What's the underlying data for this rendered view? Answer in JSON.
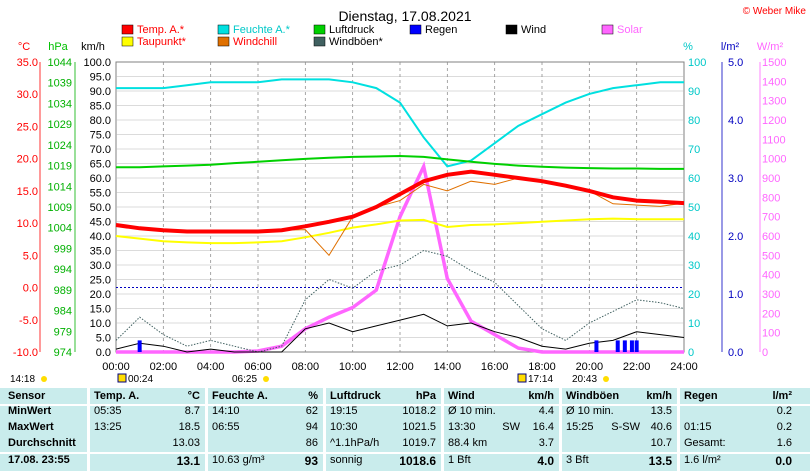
{
  "chart_data": {
    "type": "line",
    "title": "Dienstag, 17.08.2021",
    "copyright": "© Weber Mike",
    "x_tick_labels": [
      "00:00",
      "02:00",
      "04:00",
      "06:00",
      "08:00",
      "10:00",
      "12:00",
      "14:00",
      "16:00",
      "18:00",
      "20:00",
      "22:00",
      "24:00"
    ],
    "axes": {
      "temp": {
        "unit": "°C",
        "ticks": [
          "35.0",
          "30.0",
          "25.0",
          "20.0",
          "15.0",
          "10.0",
          "5.0",
          "0.0",
          "-5.0",
          "-10.0"
        ],
        "color": "#ff0000",
        "range": [
          -10,
          35
        ]
      },
      "pressure": {
        "unit": "hPa",
        "ticks": [
          "1044",
          "1039",
          "1034",
          "1029",
          "1024",
          "1019",
          "1014",
          "1009",
          "1004",
          "999",
          "994",
          "989",
          "984",
          "979",
          "974"
        ],
        "color": "#00c000",
        "range": [
          974,
          1044
        ]
      },
      "wind": {
        "unit": "km/h",
        "ticks": [
          "100.0",
          "95.0",
          "90.0",
          "85.0",
          "80.0",
          "75.0",
          "70.0",
          "65.0",
          "60.0",
          "55.0",
          "50.0",
          "45.0",
          "40.0",
          "35.0",
          "30.0",
          "25.0",
          "20.0",
          "15.0",
          "10.0",
          "5.0",
          "0.0"
        ],
        "color": "#000000",
        "range": [
          0,
          100
        ]
      },
      "humidity": {
        "unit": "%",
        "ticks": [
          "100",
          "90",
          "80",
          "70",
          "60",
          "50",
          "40",
          "30",
          "20",
          "10",
          "0"
        ],
        "color": "#00e0e0",
        "range": [
          0,
          100
        ]
      },
      "rain": {
        "unit": "l/m²",
        "ticks": [
          "5.0",
          "4.0",
          "3.0",
          "2.0",
          "1.0",
          "0.0"
        ],
        "color": "#0000c0",
        "range": [
          0,
          5
        ]
      },
      "solar": {
        "unit": "W/m²",
        "ticks": [
          "1500",
          "1400",
          "1300",
          "1200",
          "1100",
          "1000",
          "900",
          "800",
          "700",
          "600",
          "500",
          "400",
          "300",
          "200",
          "100",
          "0"
        ],
        "color": "#ff00ff",
        "range": [
          0,
          1500
        ]
      }
    },
    "legend": [
      {
        "name": "Temp. A.*",
        "color": "#ff0000"
      },
      {
        "name": "Feuchte A.*",
        "color": "#00e0e0"
      },
      {
        "name": "Luftdruck",
        "color": "#00d000"
      },
      {
        "name": "Regen",
        "color": "#0000ff"
      },
      {
        "name": "Wind",
        "color": "#000000"
      },
      {
        "name": "Solar",
        "color": "#ff66ff"
      },
      {
        "name": "Taupunkt*",
        "color": "#ffff00"
      },
      {
        "name": "Windchill",
        "color": "#e07000"
      },
      {
        "name": "Windböen*",
        "color": "#406060"
      }
    ],
    "hours": [
      0,
      1,
      2,
      3,
      4,
      5,
      6,
      7,
      8,
      9,
      10,
      11,
      12,
      13,
      14,
      15,
      16,
      17,
      18,
      19,
      20,
      21,
      22,
      23,
      24
    ],
    "series": [
      {
        "name": "Temp. A.*",
        "axis": "temp",
        "color": "#ff0000",
        "values": [
          9.7,
          9.2,
          8.9,
          8.7,
          8.7,
          8.7,
          8.7,
          8.9,
          9.5,
          10.2,
          11.0,
          12.5,
          14.5,
          16.5,
          17.5,
          18.0,
          17.5,
          17.0,
          16.5,
          15.8,
          15.0,
          14.0,
          13.5,
          13.3,
          13.1
        ]
      },
      {
        "name": "Taupunkt*",
        "axis": "temp",
        "color": "#ffff00",
        "values": [
          8.0,
          7.6,
          7.2,
          7.0,
          6.9,
          6.9,
          7.0,
          7.2,
          7.8,
          8.5,
          9.3,
          9.8,
          10.4,
          10.5,
          9.4,
          9.7,
          9.8,
          10.0,
          10.2,
          10.4,
          10.6,
          10.7,
          10.6,
          10.6,
          10.6
        ]
      },
      {
        "name": "Feuchte A.*",
        "axis": "humidity",
        "color": "#00e0e0",
        "values": [
          91,
          91,
          91,
          92,
          93,
          93,
          93,
          94,
          94,
          94,
          93,
          91,
          86,
          74,
          64,
          66,
          72,
          78,
          82,
          86,
          89,
          91,
          92,
          93,
          93
        ]
      },
      {
        "name": "Luftdruck",
        "axis": "pressure",
        "color": "#00d000",
        "values": [
          1018.6,
          1018.6,
          1018.8,
          1019.0,
          1019.2,
          1019.6,
          1019.9,
          1020.3,
          1020.6,
          1020.9,
          1021.1,
          1021.2,
          1021.3,
          1021.1,
          1020.5,
          1019.9,
          1019.4,
          1019.0,
          1018.7,
          1018.5,
          1018.4,
          1018.3,
          1018.3,
          1018.2,
          1018.2
        ]
      },
      {
        "name": "Windchill",
        "axis": "temp",
        "color": "#e07000",
        "values": [
          9.7,
          9.2,
          8.9,
          8.7,
          8.7,
          8.7,
          8.7,
          8.9,
          9.0,
          5.0,
          11.0,
          12.5,
          13.5,
          16.0,
          15.0,
          16.5,
          16.0,
          17.0,
          16.5,
          15.8,
          15.0,
          13.0,
          12.8,
          12.6,
          13.1
        ]
      },
      {
        "name": "Solar",
        "axis": "solar",
        "color": "#ff66ff",
        "values": [
          0,
          0,
          0,
          0,
          0,
          0,
          5,
          30,
          120,
          180,
          230,
          320,
          700,
          960,
          380,
          160,
          90,
          20,
          0,
          0,
          0,
          0,
          0,
          0,
          0
        ]
      },
      {
        "name": "Wind",
        "axis": "wind",
        "color": "#000000",
        "values": [
          1,
          3,
          2,
          0,
          1,
          0,
          0,
          0,
          8,
          10,
          7,
          9,
          11,
          13,
          9,
          10,
          7,
          5,
          2,
          1,
          3,
          4,
          7,
          6,
          5
        ]
      },
      {
        "name": "Windböen*",
        "axis": "wind",
        "color": "#406060",
        "values": [
          4,
          12,
          6,
          2,
          4,
          2,
          0,
          2,
          18,
          25,
          22,
          28,
          30,
          35,
          33,
          28,
          24,
          16,
          8,
          4,
          10,
          14,
          18,
          17,
          15
        ]
      }
    ],
    "rain_bars": [
      {
        "hour": 1.0,
        "value": 0.2
      },
      {
        "hour": 20.3,
        "value": 0.2
      },
      {
        "hour": 21.2,
        "value": 0.2
      },
      {
        "hour": 21.5,
        "value": 0.2
      },
      {
        "hour": 21.8,
        "value": 0.2
      },
      {
        "hour": 22.0,
        "value": 0.2
      }
    ],
    "sun_moon": {
      "moonset": "14:18",
      "moonrise_marker": "00:24",
      "sunrise": "06:25",
      "moonrise2": "17:14",
      "sunset": "20:43"
    }
  },
  "table": {
    "headers": [
      "Sensor",
      "Temp. A.",
      "°C",
      "Feuchte A.",
      "%",
      "Luftdruck",
      "hPa",
      "Wind",
      "km/h",
      "Windböen",
      "km/h",
      "Regen",
      "l/m²"
    ],
    "rows": [
      [
        "MinWert",
        "05:35",
        "8.7",
        "14:10",
        "62",
        "19:15",
        "1018.2",
        "Ø 10 min.",
        "",
        "4.4",
        "Ø 10 min.",
        "",
        "13.5",
        "",
        "0.2"
      ],
      [
        "MaxWert",
        "13:25",
        "18.5",
        "06:55",
        "94",
        "10:30",
        "1021.5",
        "13:30",
        "SW",
        "16.4",
        "15:25",
        "S-SW",
        "40.6",
        "01:15",
        "0.2"
      ],
      [
        "Durchschnitt",
        "",
        "13.03",
        "",
        "86",
        "^1.1hPa/h",
        "1019.7",
        "88.4 km",
        "",
        "3.7",
        "",
        "",
        "10.7",
        "Gesamt:",
        "1.6"
      ],
      [
        "17.08. 23:55",
        "",
        "13.1",
        "10.63 g/m³",
        "93",
        "sonnig",
        "1018.6",
        "1 Bft",
        "",
        "4.0",
        "3 Bft",
        "",
        "13.5",
        "1.6 l/m²",
        "0.0"
      ]
    ]
  }
}
